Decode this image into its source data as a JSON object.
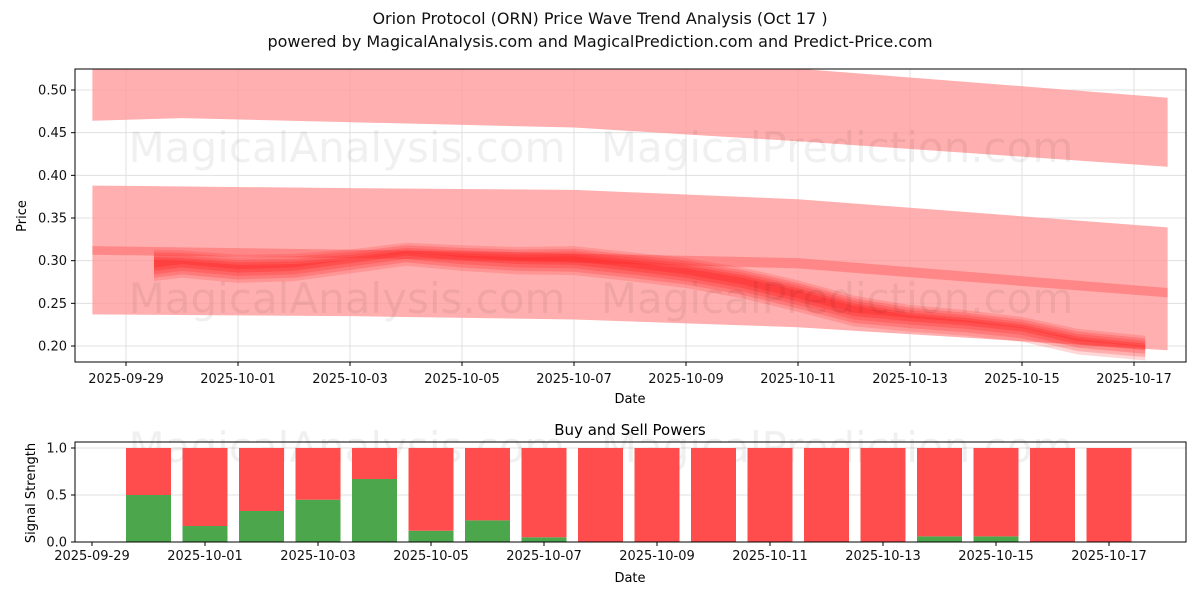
{
  "title": "Orion Protocol (ORN) Price Wave Trend Analysis (Oct 17 )",
  "subtitle": "powered by MagicalAnalysis.com and MagicalPrediction.com and Predict-Price.com",
  "watermarks": [
    "MagicalAnalysis.com",
    "MagicalPrediction.com"
  ],
  "colors": {
    "band_light": "#ff9999",
    "band_dark": "#ff2222",
    "buy": "#4ca64c",
    "sell": "#ff4c4c"
  },
  "chart_data": [
    {
      "type": "area",
      "title": "",
      "xlabel": "Date",
      "ylabel": "Price",
      "ylim": [
        0.18,
        0.525
      ],
      "xlim": [
        "2025-09-28",
        "2025-10-18"
      ],
      "yticks": [
        "0.20",
        "0.25",
        "0.30",
        "0.35",
        "0.40",
        "0.45",
        "0.50"
      ],
      "xticks": [
        "2025-09-29",
        "2025-10-01",
        "2025-10-03",
        "2025-10-05",
        "2025-10-07",
        "2025-10-09",
        "2025-10-11",
        "2025-10-13",
        "2025-10-15",
        "2025-10-17"
      ],
      "grid": true,
      "bands": [
        {
          "name": "upper-band",
          "x": [
            "2025-09-28.4",
            "2025-09-30",
            "2025-10-07",
            "2025-10-11",
            "2025-10-17.6"
          ],
          "upper": [
            0.53,
            0.53,
            0.53,
            0.525,
            0.491
          ],
          "lower": [
            0.464,
            0.467,
            0.456,
            0.44,
            0.41
          ]
        },
        {
          "name": "middle-band",
          "x": [
            "2025-09-28.4",
            "2025-10-03",
            "2025-10-07",
            "2025-10-11",
            "2025-10-17.6"
          ],
          "upper": [
            0.388,
            0.385,
            0.383,
            0.372,
            0.339
          ],
          "lower": [
            0.237,
            0.235,
            0.231,
            0.222,
            0.195
          ]
        },
        {
          "name": "trend-line",
          "x": [
            "2025-09-28.4",
            "2025-10-05",
            "2025-10-11",
            "2025-10-17.6"
          ],
          "upper": [
            0.317,
            0.311,
            0.303,
            0.268
          ],
          "lower": [
            0.307,
            0.301,
            0.291,
            0.257
          ]
        }
      ],
      "price_wave": {
        "x": [
          "2025-09-29.5",
          "2025-09-30",
          "2025-10-01",
          "2025-10-02",
          "2025-10-03",
          "2025-10-04",
          "2025-10-05",
          "2025-10-06",
          "2025-10-07",
          "2025-10-08",
          "2025-10-09",
          "2025-10-10",
          "2025-10-11",
          "2025-10-12",
          "2025-10-13",
          "2025-10-14",
          "2025-10-15",
          "2025-10-16",
          "2025-10-17.2"
        ],
        "upper": [
          0.313,
          0.312,
          0.307,
          0.308,
          0.313,
          0.321,
          0.318,
          0.316,
          0.317,
          0.31,
          0.303,
          0.292,
          0.277,
          0.259,
          0.248,
          0.242,
          0.234,
          0.22,
          0.212
        ],
        "lower": [
          0.276,
          0.28,
          0.274,
          0.276,
          0.285,
          0.294,
          0.288,
          0.284,
          0.283,
          0.276,
          0.268,
          0.256,
          0.24,
          0.223,
          0.217,
          0.212,
          0.205,
          0.19,
          0.183
        ]
      }
    },
    {
      "type": "bar",
      "title": "Buy and Sell Powers",
      "xlabel": "Date",
      "ylabel": "Signal Strength",
      "ylim": [
        0,
        1.05
      ],
      "yticks": [
        "0.0",
        "0.5",
        "1.0"
      ],
      "xticks": [
        "2025-09-29",
        "2025-10-01",
        "2025-10-03",
        "2025-10-05",
        "2025-10-07",
        "2025-10-09",
        "2025-10-11",
        "2025-10-13",
        "2025-10-15",
        "2025-10-17"
      ],
      "grid": true,
      "categories": [
        "2025-09-30",
        "2025-10-01",
        "2025-10-02",
        "2025-10-03",
        "2025-10-04",
        "2025-10-05",
        "2025-10-06",
        "2025-10-07",
        "2025-10-08",
        "2025-10-09",
        "2025-10-10",
        "2025-10-11",
        "2025-10-12",
        "2025-10-13",
        "2025-10-14",
        "2025-10-15",
        "2025-10-16",
        "2025-10-17"
      ],
      "series": [
        {
          "name": "Buy",
          "values": [
            0.5,
            0.17,
            0.33,
            0.45,
            0.67,
            0.12,
            0.23,
            0.05,
            0,
            0,
            0,
            0,
            0,
            0,
            0.06,
            0.06,
            0,
            0
          ]
        },
        {
          "name": "Sell",
          "values": [
            0.5,
            0.83,
            0.67,
            0.55,
            0.33,
            0.88,
            0.77,
            0.95,
            1,
            1,
            1,
            1,
            1,
            1,
            0.94,
            0.94,
            1,
            1
          ]
        }
      ]
    }
  ]
}
